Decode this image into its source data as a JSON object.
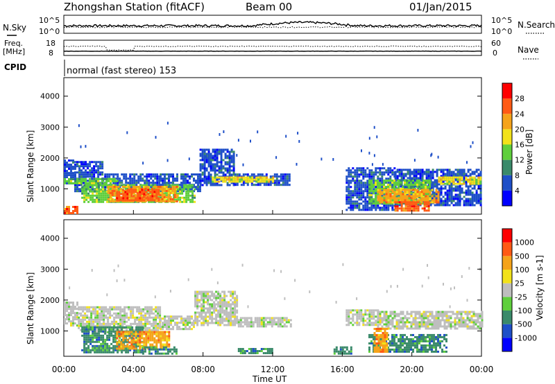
{
  "header": {
    "station": "Zhongshan Station (fitACF)",
    "beam": "Beam 00",
    "date": "01/Jan/2015"
  },
  "nsky_panel": {
    "left_label": "N.Sky",
    "right_label": "N.Search",
    "left_ticks": [
      "10^5",
      "10^0"
    ],
    "right_ticks": [
      "10^5",
      "10^0"
    ]
  },
  "freq_panel": {
    "left_label_1": "Freq.",
    "left_label_2": "[MHz]",
    "right_label": "Nave",
    "left_ticks": [
      "18",
      "8"
    ],
    "right_ticks": [
      "60",
      "0"
    ]
  },
  "cpid": {
    "label": "CPID",
    "text": "normal (fast stereo) 153"
  },
  "time_axis": {
    "label": "Time UT",
    "ticks": [
      "00:00",
      "04:00",
      "08:00",
      "12:00",
      "16:00",
      "20:00",
      "00:00"
    ]
  },
  "chart_data": [
    {
      "type": "heatmap",
      "name": "power",
      "ylabel": "Slant Range [km]",
      "yticks": [
        1000,
        2000,
        3000,
        4000
      ],
      "ylim": [
        180,
        4600
      ],
      "xlim_hours": [
        0,
        24
      ],
      "colorbar": {
        "label": "Power [dB]",
        "ticks": [
          "4",
          "8",
          "12",
          "16",
          "20",
          "24",
          "28"
        ],
        "colors": [
          "#0000ff",
          "#1e4fc8",
          "#3a8a6a",
          "#5fcf3c",
          "#f2e21a",
          "#f5a31a",
          "#ff5a14",
          "#ff0000"
        ]
      },
      "regions": [
        {
          "t": [
            0.0,
            0.6
          ],
          "r": [
            1150,
            1950
          ],
          "level": 1
        },
        {
          "t": [
            0.6,
            2.2
          ],
          "r": [
            900,
            1900
          ],
          "level": 1
        },
        {
          "t": [
            2.2,
            5.5
          ],
          "r": [
            900,
            1500
          ],
          "level": 1
        },
        {
          "t": [
            5.5,
            7.8
          ],
          "r": [
            950,
            1500
          ],
          "level": 1
        },
        {
          "t": [
            7.8,
            9.8
          ],
          "r": [
            1150,
            2300
          ],
          "level": 1
        },
        {
          "t": [
            9.8,
            13.0
          ],
          "r": [
            1100,
            1500
          ],
          "level": 1
        },
        {
          "t": [
            16.2,
            19.0
          ],
          "r": [
            350,
            1700
          ],
          "level": 1
        },
        {
          "t": [
            19.0,
            24.0
          ],
          "r": [
            500,
            1650
          ],
          "level": 1
        },
        {
          "t": [
            0.0,
            3.0
          ],
          "r": [
            1150,
            1350
          ],
          "level": 3
        },
        {
          "t": [
            1.0,
            7.5
          ],
          "r": [
            550,
            1150
          ],
          "level": 3
        },
        {
          "t": [
            2.5,
            6.5
          ],
          "r": [
            600,
            1100
          ],
          "level": 5
        },
        {
          "t": [
            3.0,
            5.5
          ],
          "r": [
            650,
            1000
          ],
          "level": 6
        },
        {
          "t": [
            8.5,
            12.0
          ],
          "r": [
            1250,
            1400
          ],
          "level": 4
        },
        {
          "t": [
            17.5,
            21.0
          ],
          "r": [
            500,
            1300
          ],
          "level": 3
        },
        {
          "t": [
            18.0,
            21.5
          ],
          "r": [
            550,
            1000
          ],
          "level": 5
        },
        {
          "t": [
            19.0,
            21.0
          ],
          "r": [
            300,
            600
          ],
          "level": 6
        },
        {
          "t": [
            21.5,
            24.0
          ],
          "r": [
            1150,
            1400
          ],
          "level": 4
        },
        {
          "t": [
            0.0,
            0.8
          ],
          "r": [
            200,
            450
          ],
          "level": 6
        }
      ]
    },
    {
      "type": "heatmap",
      "name": "velocity",
      "ylabel": "Slant Range [km]",
      "yticks": [
        1000,
        2000,
        3000,
        4000
      ],
      "ylim": [
        180,
        4600
      ],
      "xlim_hours": [
        0,
        24
      ],
      "colorbar": {
        "label": "Velocity [m s-1]",
        "ticks": [
          "1000",
          "500",
          "100",
          "25",
          "-25",
          "-100",
          "-500",
          "-1000"
        ],
        "colors": [
          "#0000ff",
          "#1e4fc8",
          "#3a8a6a",
          "#5fcf3c",
          "#bebebe",
          "#f2e21a",
          "#f5a31a",
          "#ff5a14",
          "#ff0000"
        ]
      },
      "regions": [
        {
          "t": [
            0.0,
            0.8
          ],
          "r": [
            1150,
            1950
          ],
          "level": 4
        },
        {
          "t": [
            0.8,
            5.5
          ],
          "r": [
            950,
            1800
          ],
          "level": 4
        },
        {
          "t": [
            5.5,
            7.5
          ],
          "r": [
            1050,
            1500
          ],
          "level": 4
        },
        {
          "t": [
            7.5,
            10.0
          ],
          "r": [
            1200,
            2300
          ],
          "level": 4
        },
        {
          "t": [
            10.0,
            13.0
          ],
          "r": [
            1150,
            1450
          ],
          "level": 4
        },
        {
          "t": [
            16.2,
            18.0
          ],
          "r": [
            1200,
            1700
          ],
          "level": 4
        },
        {
          "t": [
            18.0,
            24.0
          ],
          "r": [
            1100,
            1650
          ],
          "level": 4
        },
        {
          "t": [
            1.0,
            4.5
          ],
          "r": [
            300,
            1150
          ],
          "level": 2
        },
        {
          "t": [
            3.0,
            6.0
          ],
          "r": [
            450,
            1000
          ],
          "level": 6
        },
        {
          "t": [
            4.5,
            6.5
          ],
          "r": [
            250,
            500
          ],
          "level": 2
        },
        {
          "t": [
            10.0,
            12.0
          ],
          "r": [
            250,
            450
          ],
          "level": 2
        },
        {
          "t": [
            17.5,
            22.0
          ],
          "r": [
            350,
            900
          ],
          "level": 2
        },
        {
          "t": [
            17.8,
            18.6
          ],
          "r": [
            350,
            1100
          ],
          "level": 6
        },
        {
          "t": [
            15.5,
            16.5
          ],
          "r": [
            250,
            500
          ],
          "level": 2
        }
      ]
    }
  ],
  "series_lines": {
    "nsky_level": 0.42,
    "freq_level": 0.28,
    "nave_level": 0.6
  }
}
